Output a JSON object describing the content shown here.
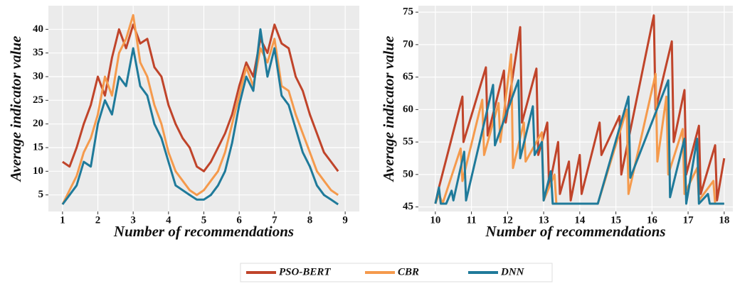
{
  "chart_data": [
    {
      "type": "line",
      "xlabel": "Number of recommendations",
      "ylabel": "Average indicator value",
      "xlim": [
        0.6,
        9.4
      ],
      "ylim": [
        1.5,
        45
      ],
      "xticks": [
        1,
        2,
        3,
        4,
        5,
        6,
        7,
        8,
        9
      ],
      "yticks": [
        5,
        10,
        15,
        20,
        25,
        30,
        35,
        40
      ],
      "grid": true,
      "series": [
        {
          "name": "PSO-BERT",
          "color": "#c0442a",
          "x": [
            1.0,
            1.2,
            1.4,
            1.6,
            1.8,
            2.0,
            2.2,
            2.4,
            2.6,
            2.8,
            3.0,
            3.2,
            3.4,
            3.6,
            3.8,
            4.0,
            4.2,
            4.4,
            4.6,
            4.8,
            5.0,
            5.2,
            5.4,
            5.6,
            5.8,
            6.0,
            6.2,
            6.4,
            6.6,
            6.8,
            7.0,
            7.2,
            7.4,
            7.6,
            7.8,
            8.0,
            8.2,
            8.4,
            8.6,
            8.8
          ],
          "values": [
            12,
            11,
            15,
            20,
            24,
            30,
            26,
            34,
            40,
            36,
            41,
            37,
            38,
            32,
            30,
            24,
            20,
            17,
            15,
            11,
            10,
            12,
            15,
            18,
            22,
            28,
            33,
            30,
            38,
            35,
            41,
            37,
            36,
            30,
            27,
            22,
            18,
            14,
            12,
            10
          ]
        },
        {
          "name": "CBR",
          "color": "#f59a4c",
          "x": [
            1.0,
            1.2,
            1.4,
            1.6,
            1.8,
            2.0,
            2.2,
            2.4,
            2.6,
            2.8,
            3.0,
            3.2,
            3.4,
            3.6,
            3.8,
            4.0,
            4.2,
            4.4,
            4.6,
            4.8,
            5.0,
            5.2,
            5.4,
            5.6,
            5.8,
            6.0,
            6.2,
            6.4,
            6.6,
            6.8,
            7.0,
            7.2,
            7.4,
            7.6,
            7.8,
            8.0,
            8.2,
            8.4,
            8.6,
            8.8
          ],
          "values": [
            3,
            6,
            9,
            14,
            17,
            22,
            30,
            26,
            35,
            38,
            43,
            33,
            30,
            24,
            20,
            14,
            10,
            8,
            6,
            5,
            6,
            8,
            10,
            14,
            20,
            26,
            32,
            28,
            36,
            33,
            38,
            28,
            27,
            22,
            18,
            14,
            10,
            8,
            6,
            5
          ]
        },
        {
          "name": "DNN",
          "color": "#1f7a9a",
          "x": [
            1.0,
            1.2,
            1.4,
            1.6,
            1.8,
            2.0,
            2.2,
            2.4,
            2.6,
            2.8,
            3.0,
            3.2,
            3.4,
            3.6,
            3.8,
            4.0,
            4.2,
            4.4,
            4.6,
            4.8,
            5.0,
            5.2,
            5.4,
            5.6,
            5.8,
            6.0,
            6.2,
            6.4,
            6.6,
            6.8,
            7.0,
            7.2,
            7.4,
            7.6,
            7.8,
            8.0,
            8.2,
            8.4,
            8.6,
            8.8
          ],
          "values": [
            3,
            5,
            7,
            12,
            11,
            20,
            25,
            22,
            30,
            28,
            36,
            28,
            26,
            20,
            17,
            12,
            7,
            6,
            5,
            4,
            4,
            5,
            7,
            10,
            16,
            24,
            30,
            27,
            40,
            30,
            36,
            26,
            24,
            19,
            14,
            11,
            7,
            5,
            4,
            3
          ]
        }
      ]
    },
    {
      "type": "line",
      "xlabel": "Number of recommendations",
      "ylabel": "Average indicator value",
      "xlim": [
        9.53,
        18.24
      ],
      "ylim": [
        44.3,
        76
      ],
      "xticks": [
        10,
        11,
        12,
        13,
        14,
        15,
        16,
        17,
        18
      ],
      "yticks": [
        45,
        50,
        55,
        60,
        65,
        70,
        75
      ],
      "grid": true,
      "series": [
        {
          "name": "PSO-BERT",
          "color": "#c0442a",
          "x": [
            10,
            10.1,
            10.75,
            10.78,
            11.4,
            11.45,
            11.9,
            11.95,
            12.35,
            12.4,
            12.8,
            12.85,
            13.1,
            13.15,
            13.4,
            13.45,
            13.7,
            13.75,
            14,
            14.05,
            14.55,
            14.6,
            15.1,
            15.15,
            16.05,
            16.1,
            16.55,
            16.6,
            16.9,
            16.95,
            17.3,
            17.35,
            17.75,
            17.8,
            18
          ],
          "values": [
            45.5,
            48,
            62,
            55,
            66.5,
            56,
            66,
            58,
            72.7,
            58,
            66.3,
            53,
            58,
            48,
            55,
            47,
            52,
            46,
            53,
            47,
            58,
            53,
            59,
            50,
            74.5,
            60,
            70.5,
            55,
            63,
            50,
            57.5,
            47,
            54.5,
            46,
            52.5
          ]
        },
        {
          "name": "CBR",
          "color": "#f59a4c",
          "x": [
            10,
            10.1,
            10.2,
            10.7,
            10.75,
            11.3,
            11.35,
            11.75,
            11.8,
            12.1,
            12.15,
            12.45,
            12.5,
            12.95,
            13,
            13.3,
            13.35,
            14.5,
            15.3,
            15.35,
            16.1,
            16.15,
            16.4,
            16.45,
            16.85,
            16.9,
            17.25,
            17.3,
            17.7,
            17.75,
            18
          ],
          "values": [
            45.5,
            47,
            45.5,
            54,
            49,
            61.5,
            53,
            61,
            55,
            68.5,
            51,
            58,
            52,
            56.5,
            46,
            50,
            45.5,
            45.5,
            60,
            47,
            65.5,
            52,
            62,
            50,
            57,
            47,
            51,
            46,
            49,
            45.5,
            45.5
          ]
        },
        {
          "name": "DNN",
          "color": "#1f7a9a",
          "x": [
            10,
            10.1,
            10.15,
            10.3,
            10.45,
            10.5,
            10.8,
            10.85,
            11.6,
            11.65,
            12.3,
            12.35,
            12.7,
            12.75,
            12.95,
            13,
            13.2,
            13.25,
            14.5,
            15.35,
            15.4,
            16.45,
            16.5,
            16.9,
            16.95,
            17.25,
            17.3,
            17.55,
            17.6,
            18
          ],
          "values": [
            45.5,
            48,
            45.5,
            45.5,
            47.5,
            46,
            53.5,
            46,
            63.8,
            54.5,
            64.5,
            52.5,
            60.5,
            53,
            55,
            46,
            50.5,
            45.5,
            45.5,
            62,
            49.5,
            64.5,
            46.5,
            55.5,
            45.5,
            55.5,
            45.5,
            47,
            45.5,
            45.5
          ]
        }
      ]
    }
  ]
}
